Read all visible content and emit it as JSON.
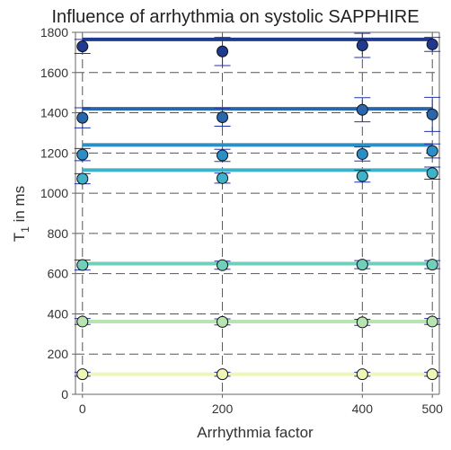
{
  "chart_data": {
    "type": "scatter",
    "title": "Influence of arrhythmia on systolic SAPPHIRE",
    "xlabel": "Arrhythmia factor",
    "ylabel_main": "T",
    "ylabel_sub": "1",
    "ylabel_rest": " in ms",
    "x": [
      0,
      200,
      400,
      500
    ],
    "x_tick_labels": [
      "0",
      "200",
      "400",
      "500"
    ],
    "y_ticks": [
      0,
      200,
      400,
      600,
      800,
      1000,
      1200,
      1400,
      1600,
      1800
    ],
    "y_tick_labels": [
      "0",
      "200",
      "400",
      "600",
      "800",
      "1000",
      "1200",
      "1400",
      "1600",
      "1800"
    ],
    "xlim": [
      -10,
      510
    ],
    "ylim": [
      0,
      1800
    ],
    "grid": true,
    "series": [
      {
        "reference": 1765,
        "values": [
          1730,
          1705,
          1735,
          1740
        ],
        "errors": [
          35,
          70,
          60,
          35
        ],
        "line_color": "#1f3a8f",
        "marker_color": "#1f3a8f"
      },
      {
        "reference": 1420,
        "values": [
          1375,
          1378,
          1415,
          1392
        ],
        "errors": [
          50,
          45,
          60,
          85
        ],
        "line_color": "#2a66ab",
        "marker_color": "#2a66ab"
      },
      {
        "reference": 1240,
        "values": [
          1192,
          1188,
          1195,
          1210
        ],
        "errors": [
          30,
          30,
          35,
          35
        ],
        "line_color": "#2b8fc6",
        "marker_color": "#2b8fc6"
      },
      {
        "reference": 1115,
        "values": [
          1072,
          1075,
          1085,
          1100
        ],
        "errors": [
          25,
          25,
          30,
          30
        ],
        "line_color": "#40b2c8",
        "marker_color": "#40b2c8"
      },
      {
        "reference": 650,
        "values": [
          643,
          642,
          645,
          645
        ],
        "errors": [
          25,
          20,
          20,
          20
        ],
        "line_color": "#6fcfbb",
        "marker_color": "#6fcfbb"
      },
      {
        "reference": 362,
        "values": [
          362,
          360,
          358,
          362
        ],
        "errors": [
          15,
          15,
          15,
          15
        ],
        "line_color": "#b8e3b3",
        "marker_color": "#b8e3b3"
      },
      {
        "reference": 100,
        "values": [
          100,
          100,
          100,
          100
        ],
        "errors": [
          10,
          10,
          10,
          10
        ],
        "line_color": "#eef6b8",
        "marker_color": "#eef6b8"
      }
    ]
  }
}
